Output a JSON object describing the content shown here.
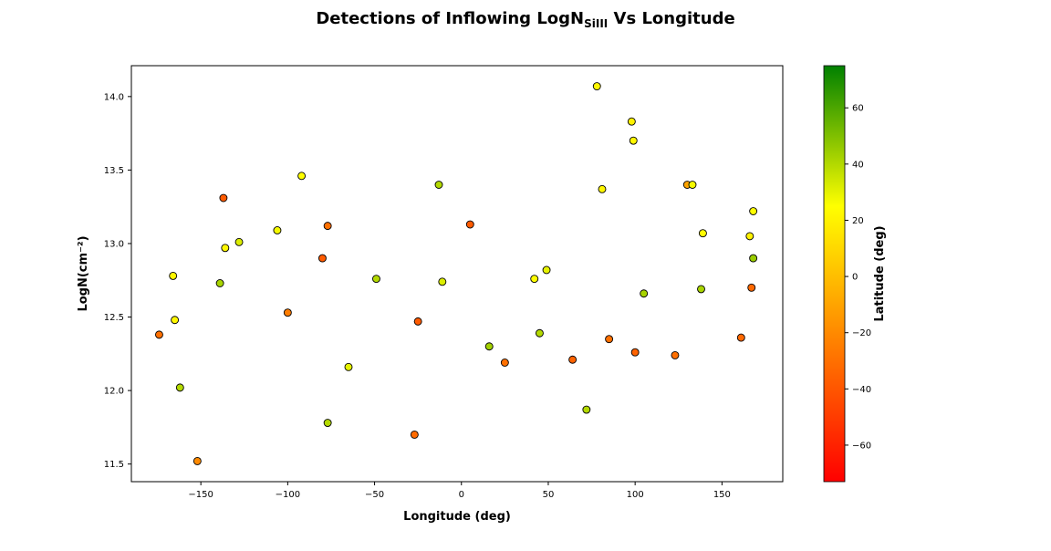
{
  "chart_data": {
    "type": "scatter",
    "title": {
      "prefix": "Detections of Inflowing LogN",
      "subscript": "SiIII",
      "suffix": " Vs Longitude"
    },
    "xlabel": "Longitude (deg)",
    "ylabel": "LogN(cm⁻²)",
    "xlim": [
      -190,
      185
    ],
    "ylim": [
      11.38,
      14.21
    ],
    "x_ticks": [
      -150,
      -100,
      -50,
      0,
      50,
      100,
      150
    ],
    "x_tick_labels": [
      "−150",
      "−100",
      "−50",
      "0",
      "50",
      "100",
      "150"
    ],
    "y_ticks": [
      11.5,
      12.0,
      12.5,
      13.0,
      13.5,
      14.0
    ],
    "y_tick_labels": [
      "11.5",
      "12.0",
      "12.5",
      "13.0",
      "13.5",
      "14.0"
    ],
    "grid": false,
    "colorbar": {
      "label": "Latitude (deg)",
      "range": [
        -73,
        75
      ],
      "ticks": [
        -60,
        -40,
        -20,
        0,
        20,
        40,
        60
      ],
      "tick_labels": [
        "−60",
        "−40",
        "−20",
        "0",
        "20",
        "40",
        "60"
      ],
      "colors": [
        {
          "value": -73,
          "color": "#ff0000"
        },
        {
          "value": 25,
          "color": "#ffff00"
        },
        {
          "value": 75,
          "color": "#008000"
        }
      ]
    },
    "points": [
      {
        "x": -174,
        "y": 12.38,
        "lat": -30
      },
      {
        "x": -166,
        "y": 12.78,
        "lat": 22
      },
      {
        "x": -165,
        "y": 12.48,
        "lat": 22
      },
      {
        "x": -162,
        "y": 12.02,
        "lat": 40
      },
      {
        "x": -152,
        "y": 11.52,
        "lat": -20
      },
      {
        "x": -139,
        "y": 12.73,
        "lat": 42
      },
      {
        "x": -137,
        "y": 13.31,
        "lat": -38
      },
      {
        "x": -136,
        "y": 12.97,
        "lat": 22
      },
      {
        "x": -128,
        "y": 13.01,
        "lat": 32
      },
      {
        "x": -106,
        "y": 13.09,
        "lat": 27
      },
      {
        "x": -100,
        "y": 12.53,
        "lat": -25
      },
      {
        "x": -92,
        "y": 13.46,
        "lat": 25
      },
      {
        "x": -80,
        "y": 12.9,
        "lat": -38
      },
      {
        "x": -77,
        "y": 13.12,
        "lat": -30
      },
      {
        "x": -77,
        "y": 11.78,
        "lat": 40
      },
      {
        "x": -65,
        "y": 12.16,
        "lat": 30
      },
      {
        "x": -49,
        "y": 12.76,
        "lat": 40
      },
      {
        "x": -27,
        "y": 11.7,
        "lat": -32
      },
      {
        "x": -25,
        "y": 12.47,
        "lat": -38
      },
      {
        "x": -13,
        "y": 13.4,
        "lat": 40
      },
      {
        "x": -11,
        "y": 12.74,
        "lat": 32
      },
      {
        "x": 5,
        "y": 13.13,
        "lat": -38
      },
      {
        "x": 16,
        "y": 12.3,
        "lat": 43
      },
      {
        "x": 25,
        "y": 12.19,
        "lat": -30
      },
      {
        "x": 42,
        "y": 12.76,
        "lat": 25
      },
      {
        "x": 45,
        "y": 12.39,
        "lat": 40
      },
      {
        "x": 49,
        "y": 12.82,
        "lat": 30
      },
      {
        "x": 64,
        "y": 12.21,
        "lat": -35
      },
      {
        "x": 72,
        "y": 11.87,
        "lat": 40
      },
      {
        "x": 78,
        "y": 14.07,
        "lat": 22
      },
      {
        "x": 81,
        "y": 13.37,
        "lat": 22
      },
      {
        "x": 85,
        "y": 12.35,
        "lat": -30
      },
      {
        "x": 98,
        "y": 13.83,
        "lat": 20
      },
      {
        "x": 99,
        "y": 13.7,
        "lat": 22
      },
      {
        "x": 100,
        "y": 12.26,
        "lat": -35
      },
      {
        "x": 105,
        "y": 12.66,
        "lat": 42
      },
      {
        "x": 123,
        "y": 12.24,
        "lat": -30
      },
      {
        "x": 130,
        "y": 13.4,
        "lat": -10
      },
      {
        "x": 133,
        "y": 13.4,
        "lat": 27
      },
      {
        "x": 138,
        "y": 12.69,
        "lat": 42
      },
      {
        "x": 139,
        "y": 13.07,
        "lat": 24
      },
      {
        "x": 161,
        "y": 12.36,
        "lat": -33
      },
      {
        "x": 166,
        "y": 13.05,
        "lat": 20
      },
      {
        "x": 167,
        "y": 12.7,
        "lat": -33
      },
      {
        "x": 168,
        "y": 12.9,
        "lat": 45
      },
      {
        "x": 168,
        "y": 13.22,
        "lat": 25
      }
    ]
  }
}
